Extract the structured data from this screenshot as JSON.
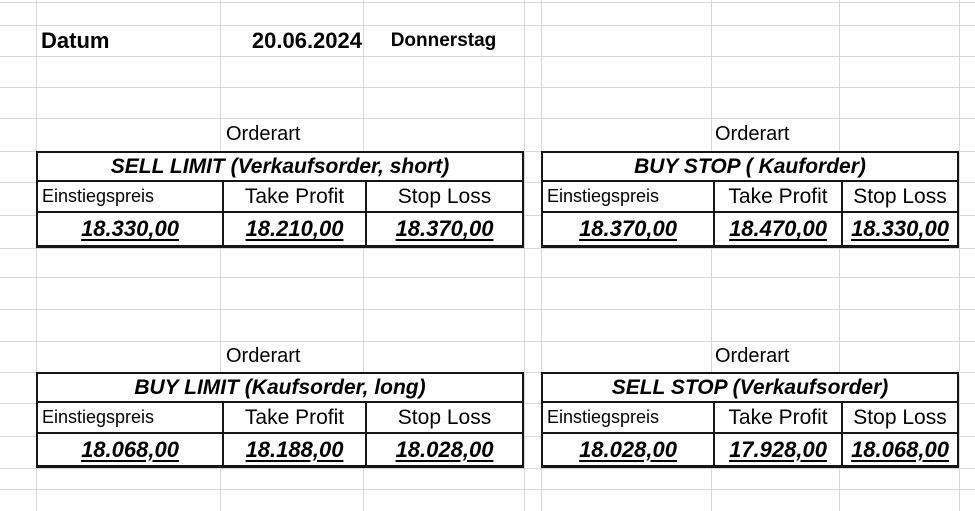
{
  "sheet": {
    "date_row": {
      "label": "Datum",
      "date": "20.06.2024",
      "weekday": "Donnerstag"
    },
    "sections": [
      {
        "id": "sell-limit",
        "orderart_label": "Orderart",
        "title": "SELL LIMIT (Verkaufsorder, short)",
        "headers": [
          "Einstiegspreis",
          "Take Profit",
          "Stop Loss"
        ],
        "values": [
          "18.330,00",
          "18.210,00",
          "18.370,00"
        ]
      },
      {
        "id": "buy-stop",
        "orderart_label": "Orderart",
        "title": "BUY STOP ( Kauforder)",
        "headers": [
          "Einstiegspreis",
          "Take Profit",
          "Stop Loss"
        ],
        "values": [
          "18.370,00",
          "18.470,00",
          "18.330,00"
        ]
      },
      {
        "id": "buy-limit",
        "orderart_label": "Orderart",
        "title": "BUY LIMIT (Kaufsorder, long)",
        "headers": [
          "Einstiegspreis",
          "Take Profit",
          "Stop Loss"
        ],
        "values": [
          "18.068,00",
          "18.188,00",
          "18.028,00"
        ]
      },
      {
        "id": "sell-stop",
        "orderart_label": "Orderart",
        "title": "SELL STOP (Verkaufsorder)",
        "headers": [
          "Einstiegspreis",
          "Take Profit",
          "Stop Loss"
        ],
        "values": [
          "18.028,00",
          "17.928,00",
          "18.068,00"
        ]
      }
    ]
  },
  "colors": {
    "background": "#ffffff",
    "gridline": "#d8d8d8",
    "table_border": "#161616",
    "text": "#000000"
  }
}
